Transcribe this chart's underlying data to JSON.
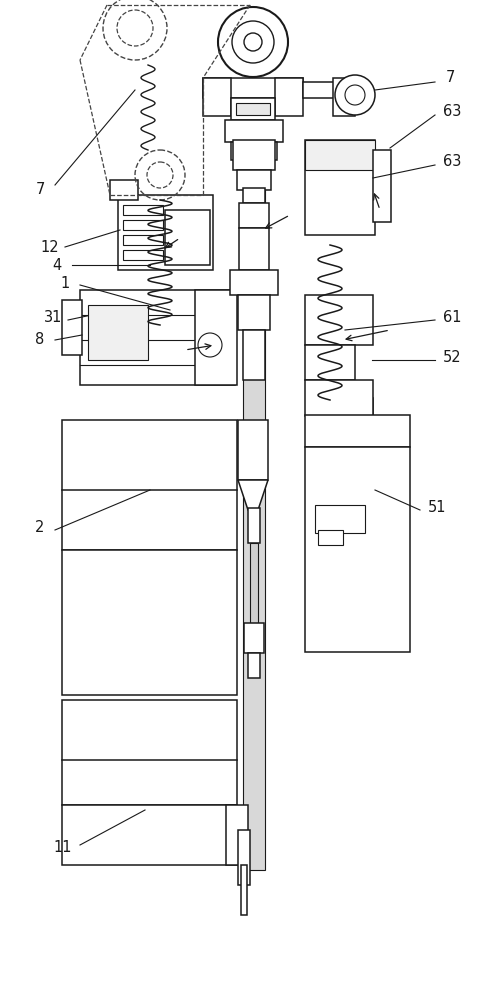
{
  "bg_color": "#ffffff",
  "line_color": "#1a1a1a",
  "dashed_color": "#444444",
  "fig_width": 4.84,
  "fig_height": 10.0,
  "dpi": 100
}
